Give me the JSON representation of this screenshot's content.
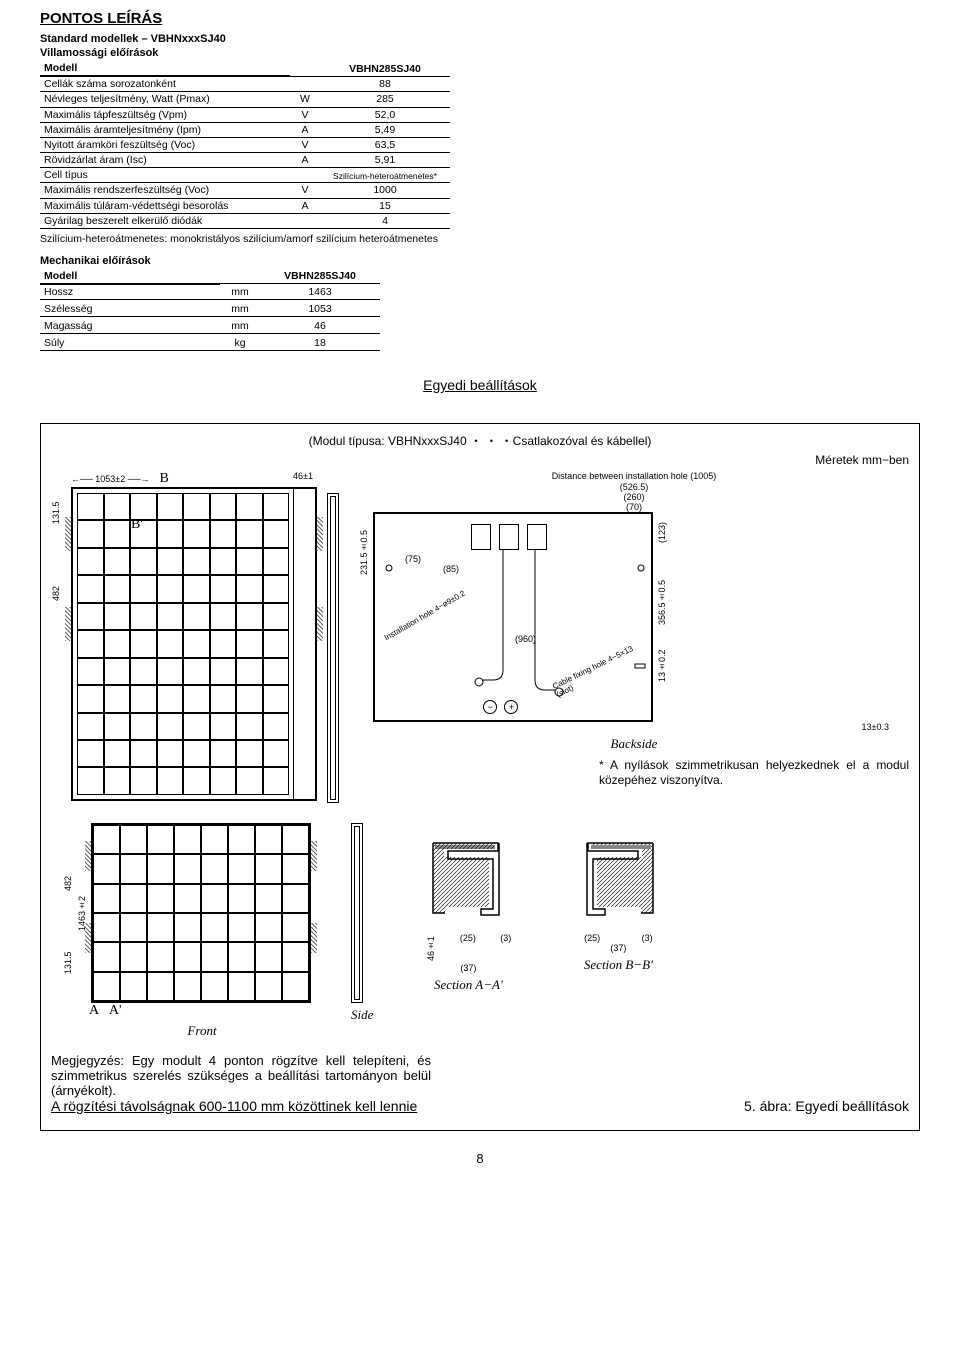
{
  "page": {
    "number": "8",
    "title": "PONTOS LEÍRÁS"
  },
  "elec": {
    "heading1": "Standard modellek – VBHNxxxSJ40",
    "heading2": "Villamossági előírások",
    "header_label": "Modell",
    "header_value": "VBHN285SJ40",
    "rows": [
      {
        "label": "Cellák száma sorozatonként",
        "unit": "",
        "val": "88"
      },
      {
        "label": "Névleges teljesítmény, Watt (Pmax)",
        "unit": "W",
        "val": "285"
      },
      {
        "label": "Maximális tápfeszültség (Vpm)",
        "unit": "V",
        "val": "52,0"
      },
      {
        "label": "Maximális áramteljesítmény (Ipm)",
        "unit": "A",
        "val": "5,49"
      },
      {
        "label": "Nyitott áramköri feszültség (Voc)",
        "unit": "V",
        "val": "63,5"
      },
      {
        "label": "Rövidzárlat áram (Isc)",
        "unit": "A",
        "val": "5,91"
      },
      {
        "label": "Cell típus",
        "unit": "",
        "val": "Szilícium-heteroátmenetes*"
      },
      {
        "label": "Maximális rendszerfeszültség (Voc)",
        "unit": "V",
        "val": "1000"
      },
      {
        "label": "Maximális túláram-védettségi besorolás",
        "unit": "A",
        "val": "15"
      },
      {
        "label": "Gyárilag beszerelt elkerülő diódák",
        "unit": "",
        "val": "4"
      }
    ],
    "footnote": "Szilícium-heteroátmenetes: monokristályos szilícium/amorf szilícium heteroátmenetes"
  },
  "mech": {
    "heading": "Mechanikai előírások",
    "header_label": "Modell",
    "header_value": "VBHN285SJ40",
    "rows": [
      {
        "label": "Hossz",
        "unit": "mm",
        "val": "1463"
      },
      {
        "label": "Szélesség",
        "unit": "mm",
        "val": "1053"
      },
      {
        "label": "Magasság",
        "unit": "mm",
        "val": "46"
      },
      {
        "label": "Súly",
        "unit": "kg",
        "val": "18"
      }
    ]
  },
  "drawing": {
    "title_out": "Egyedi beállítások",
    "title_in": "(Modul típusa: VBHNxxxSJ40 ・ ・ ・Csatlakozóval és kábellel)",
    "units": "Méretek  mm−ben",
    "dims": {
      "width": "1053±2",
      "thickness": "46±1",
      "height_full": "1463±2",
      "h_top": "131.5",
      "h_mid": "482",
      "back_hole_dist": "Distance between installation hole (1005)",
      "back_526": "(526.5)",
      "back_260": "(260)",
      "back_70": "(70)",
      "back_231": "231.5±0.5",
      "back_75": "(75)",
      "back_85": "(85)",
      "back_123": "(123)",
      "back_356": "356.5±0.5",
      "back_13a": "13±0.2",
      "back_13b": "13±0.3",
      "back_960": "(960)",
      "install_hole": "Installation hole 4−ø9±0.2",
      "cable_hole": "Cable fixing hole 4−5×13 (slot)"
    },
    "labels": {
      "B": "B",
      "Bp": "B'",
      "A": "A",
      "Ap": "A'",
      "backside": "Backside",
      "front": "Front",
      "side": "Side",
      "secA": "Section A−A'",
      "secB": "Section B−B'"
    },
    "section_dims": {
      "h": "46±1",
      "w1": "(25)",
      "w2": "(3)",
      "w3": "(37)"
    },
    "note_right": "*  A  nyílások  szimmetrikusan  helyezkednek  el  a  modul közepéhez viszonyítva.",
    "note_bottom": "Megjegyzés: Egy  modult 4 ponton  rögzítve kell telepíteni, és szimmetrikus  szerelés  szükséges  a  beállítási  tartományon belül  (árnyékolt).",
    "note_bottom2": "A rögzítési távolságnak 600-1100 mm közöttinek kell lennie",
    "fig_caption": "5. ábra: Egyedi beállítások"
  },
  "colors": {
    "text": "#000000",
    "border": "#000000",
    "bg": "#ffffff"
  }
}
